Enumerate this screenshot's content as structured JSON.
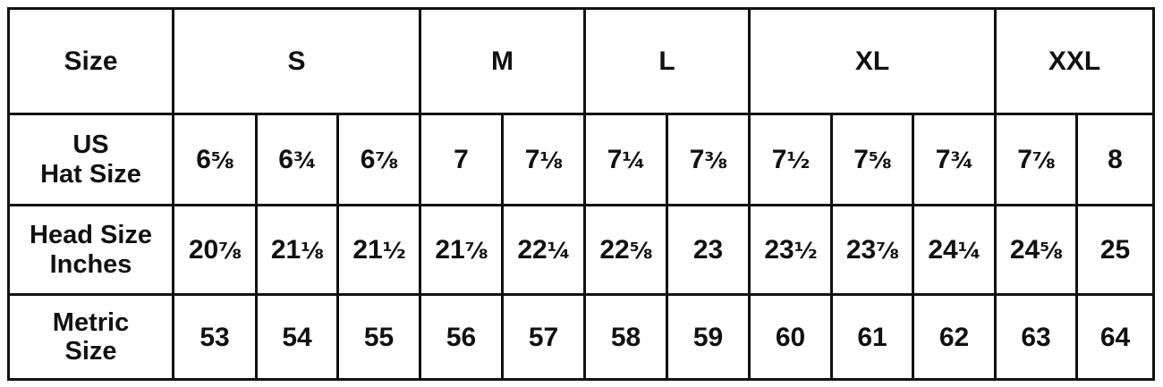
{
  "table": {
    "header_label": "Size",
    "size_groups": [
      {
        "label": "S",
        "span": 3
      },
      {
        "label": "M",
        "span": 2
      },
      {
        "label": "L",
        "span": 2
      },
      {
        "label": "XL",
        "span": 3
      },
      {
        "label": "XXL",
        "span": 2
      }
    ],
    "rows": [
      {
        "label_lines": [
          "US",
          "Hat Size"
        ],
        "cells": [
          [
            "6",
            "⅝"
          ],
          [
            "6",
            "¾"
          ],
          [
            "6",
            "⅞"
          ],
          [
            "7",
            ""
          ],
          [
            "7",
            "⅛"
          ],
          [
            "7",
            "¼"
          ],
          [
            "7",
            "⅜"
          ],
          [
            "7",
            "½"
          ],
          [
            "7",
            "⅝"
          ],
          [
            "7",
            "¾"
          ],
          [
            "7",
            "⅞"
          ],
          [
            "8",
            ""
          ]
        ]
      },
      {
        "label_lines": [
          "Head Size",
          "Inches"
        ],
        "cells": [
          [
            "20",
            "⅞"
          ],
          [
            "21",
            "⅛"
          ],
          [
            "21",
            "½"
          ],
          [
            "21",
            "⅞"
          ],
          [
            "22",
            "¼"
          ],
          [
            "22",
            "⅝"
          ],
          [
            "23",
            ""
          ],
          [
            "23",
            "½"
          ],
          [
            "23",
            "⅞"
          ],
          [
            "24",
            "¼"
          ],
          [
            "24",
            "⅝"
          ],
          [
            "25",
            ""
          ]
        ]
      },
      {
        "label_lines": [
          "Metric",
          "Size"
        ],
        "cells": [
          [
            "53",
            ""
          ],
          [
            "54",
            ""
          ],
          [
            "55",
            ""
          ],
          [
            "56",
            ""
          ],
          [
            "57",
            ""
          ],
          [
            "58",
            ""
          ],
          [
            "59",
            ""
          ],
          [
            "60",
            ""
          ],
          [
            "61",
            ""
          ],
          [
            "62",
            ""
          ],
          [
            "63",
            ""
          ],
          [
            "64",
            ""
          ]
        ]
      }
    ]
  }
}
